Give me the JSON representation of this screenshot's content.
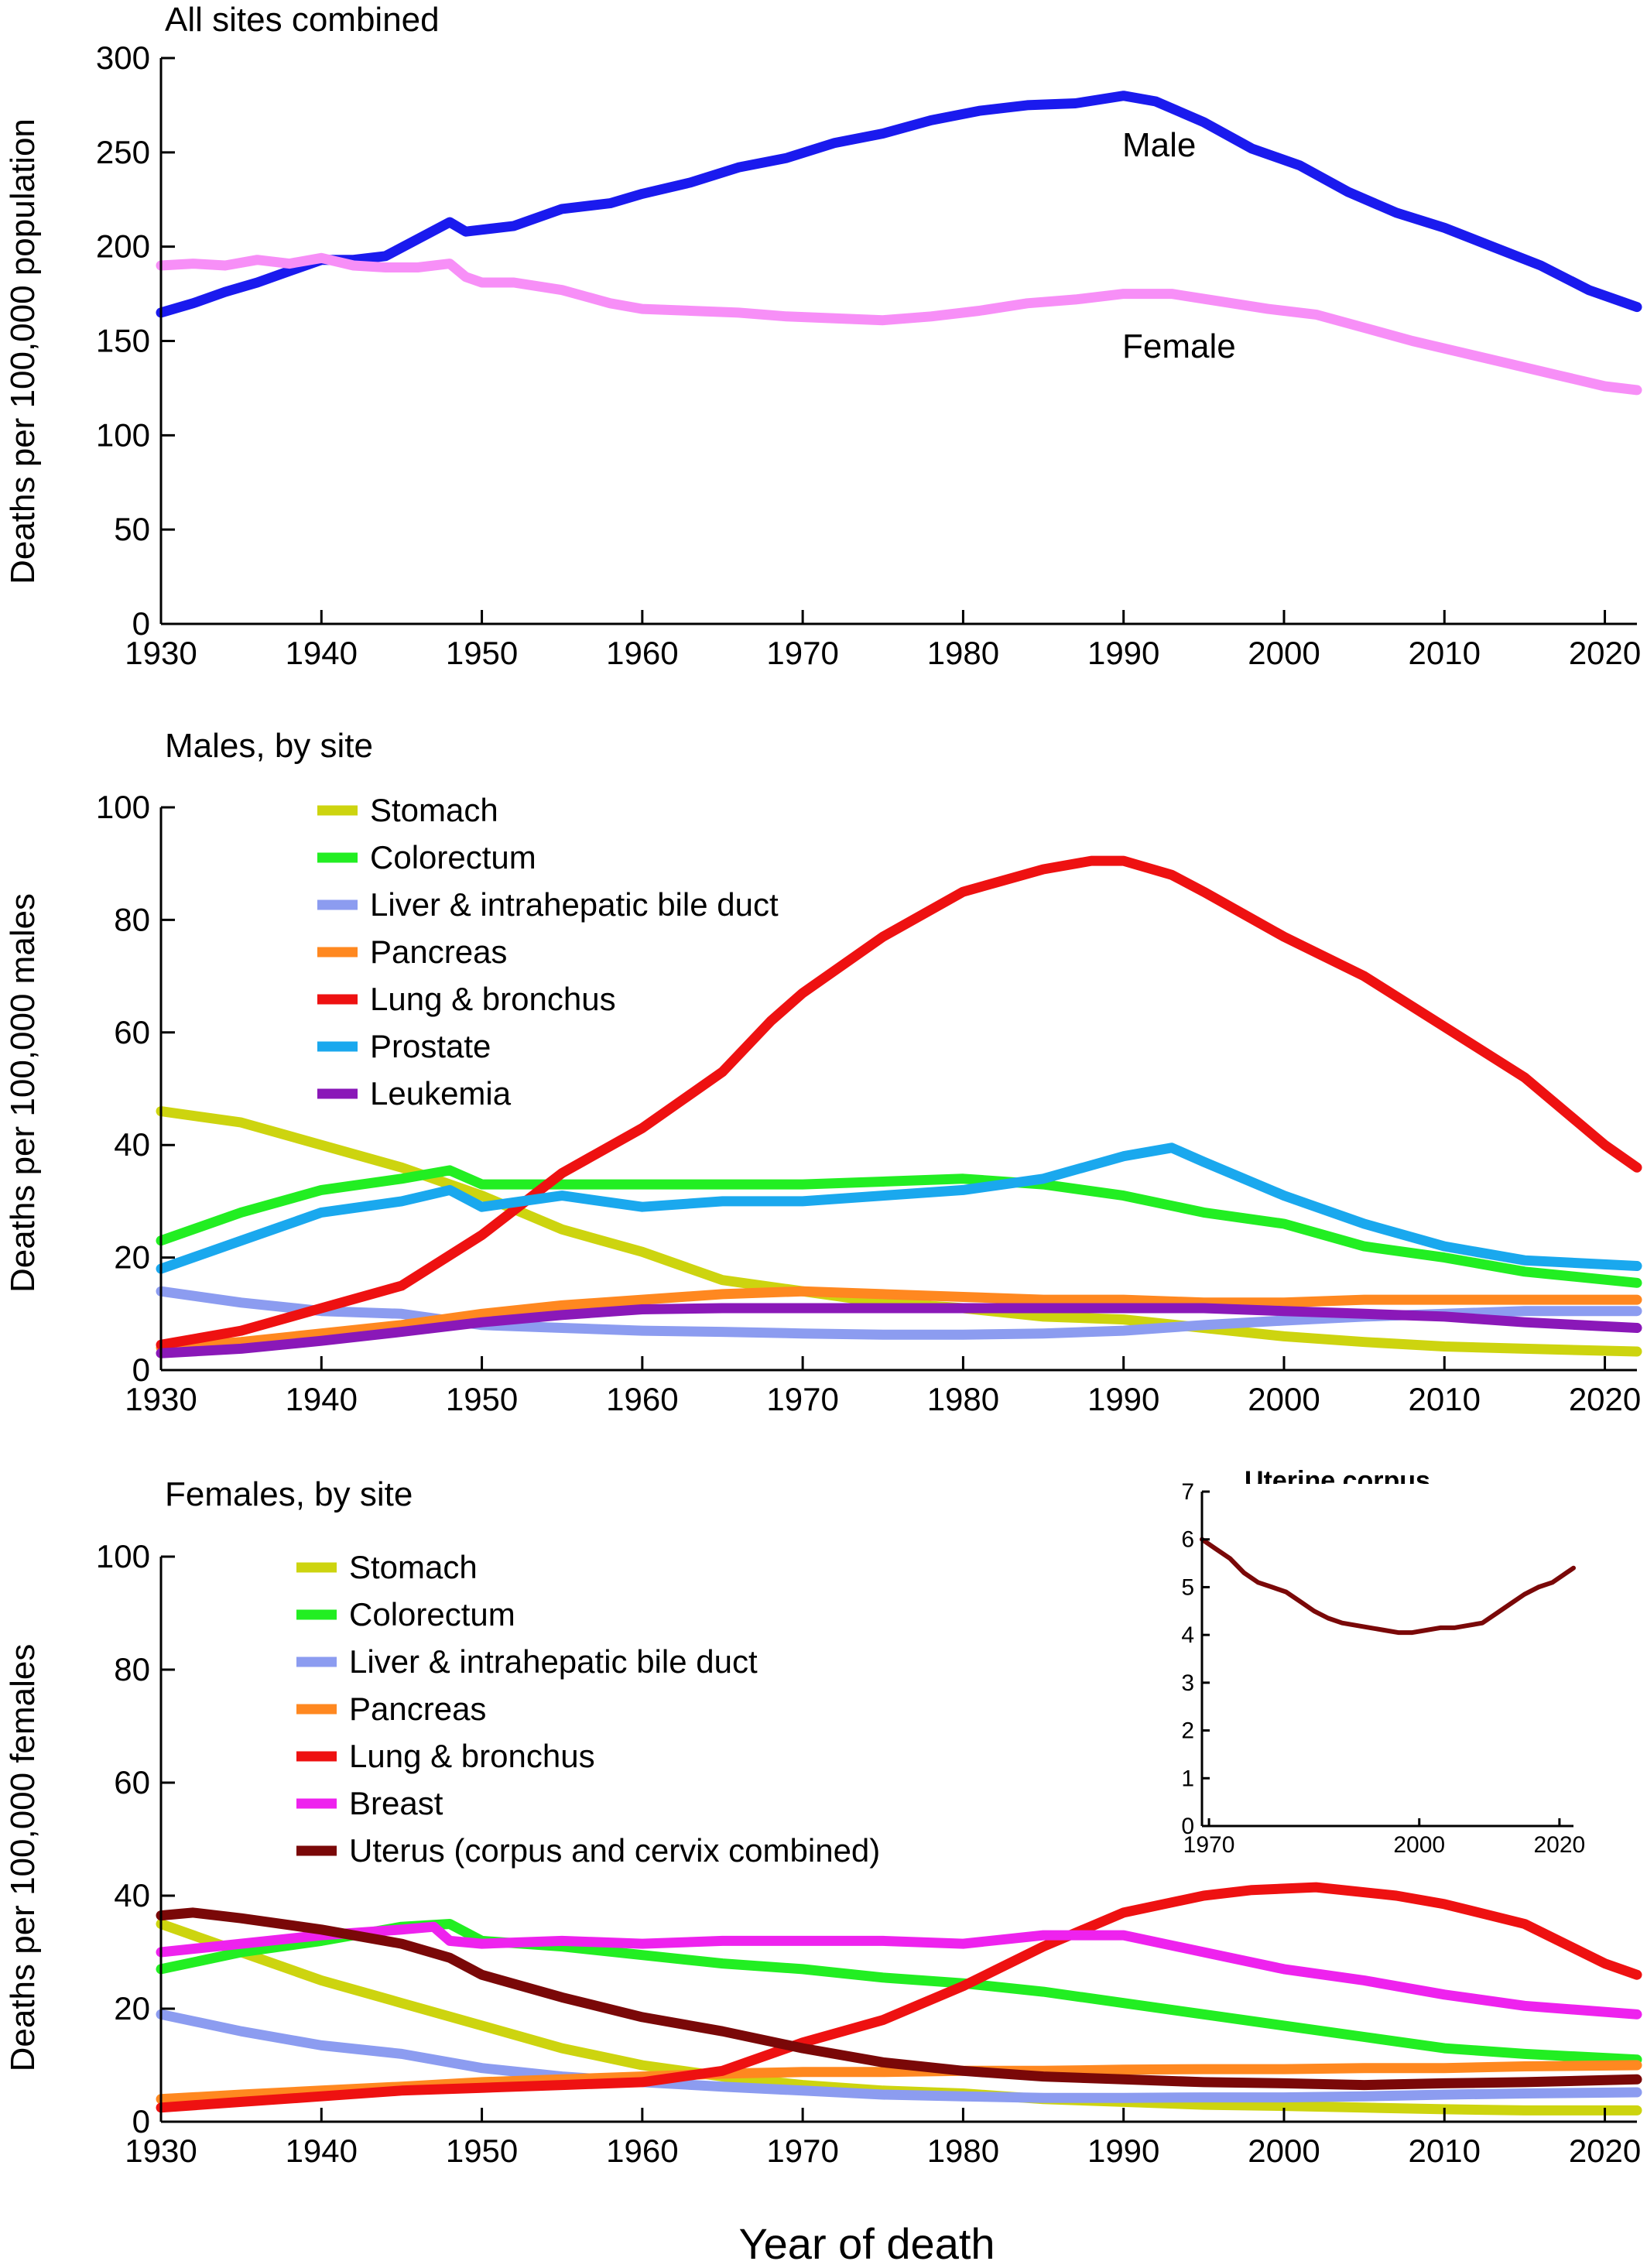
{
  "x_axis_title": "Year of death",
  "chart_data": [
    {
      "type": "line",
      "title": "All sites combined",
      "ylabel": "Deaths per 100,000 population",
      "xlabel": "",
      "xlim": [
        1930,
        2022
      ],
      "ylim": [
        0,
        300
      ],
      "xticks": [
        1930,
        1940,
        1950,
        1960,
        1970,
        1980,
        1990,
        2000,
        2010,
        2020
      ],
      "yticks": [
        0,
        50,
        100,
        150,
        200,
        250,
        300
      ],
      "series": [
        {
          "name": "Male",
          "color": "#1a1aee",
          "x": [
            1930,
            1932,
            1934,
            1936,
            1938,
            1940,
            1942,
            1944,
            1946,
            1948,
            1949,
            1952,
            1955,
            1958,
            1960,
            1963,
            1966,
            1969,
            1972,
            1975,
            1978,
            1981,
            1984,
            1987,
            1990,
            1992,
            1995,
            1998,
            2001,
            2004,
            2007,
            2010,
            2013,
            2016,
            2019,
            2022
          ],
          "y": [
            165,
            170,
            176,
            181,
            187,
            193,
            193,
            195,
            204,
            213,
            208,
            211,
            220,
            223,
            228,
            234,
            242,
            247,
            255,
            260,
            267,
            272,
            275,
            276,
            280,
            277,
            266,
            252,
            243,
            229,
            218,
            210,
            200,
            190,
            177,
            168
          ]
        },
        {
          "name": "Female",
          "color": "#f78ff7",
          "x": [
            1930,
            1932,
            1934,
            1936,
            1938,
            1940,
            1942,
            1944,
            1946,
            1948,
            1949,
            1950,
            1952,
            1955,
            1958,
            1960,
            1963,
            1966,
            1969,
            1972,
            1975,
            1978,
            1981,
            1984,
            1987,
            1990,
            1993,
            1996,
            1999,
            2002,
            2005,
            2008,
            2011,
            2014,
            2017,
            2020,
            2022
          ],
          "y": [
            190,
            191,
            190,
            193,
            191,
            194,
            190,
            189,
            189,
            191,
            184,
            181,
            181,
            177,
            170,
            167,
            166,
            165,
            163,
            162,
            161,
            163,
            166,
            170,
            172,
            175,
            175,
            171,
            167,
            164,
            157,
            150,
            144,
            138,
            132,
            126,
            124
          ]
        }
      ]
    },
    {
      "type": "line",
      "title": "Males, by site",
      "ylabel": "Deaths per 100,000 males",
      "xlabel": "",
      "xlim": [
        1930,
        2022
      ],
      "ylim": [
        0,
        100
      ],
      "xticks": [
        1930,
        1940,
        1950,
        1960,
        1970,
        1980,
        1990,
        2000,
        2010,
        2020
      ],
      "yticks": [
        0,
        20,
        40,
        60,
        80,
        100
      ],
      "legend": "top-left",
      "series": [
        {
          "name": "Stomach",
          "color": "#cdd40f",
          "x": [
            1930,
            1935,
            1940,
            1945,
            1950,
            1955,
            1960,
            1965,
            1970,
            1975,
            1980,
            1985,
            1990,
            1995,
            2000,
            2005,
            2010,
            2015,
            2022
          ],
          "y": [
            46,
            44,
            40,
            36,
            31,
            25,
            21,
            16,
            14,
            12,
            11,
            9.5,
            9,
            7.5,
            6,
            5,
            4.2,
            3.8,
            3.3
          ]
        },
        {
          "name": "Colorectum",
          "color": "#22ee22",
          "x": [
            1930,
            1935,
            1940,
            1945,
            1948,
            1950,
            1955,
            1960,
            1965,
            1970,
            1975,
            1980,
            1985,
            1990,
            1995,
            2000,
            2005,
            2010,
            2015,
            2022
          ],
          "y": [
            23,
            28,
            32,
            34,
            35.5,
            33,
            33,
            33,
            33,
            33,
            33.5,
            34,
            33,
            31,
            28,
            26,
            22,
            20,
            17.5,
            15.5
          ]
        },
        {
          "name": "Liver & intrahepatic bile duct",
          "color": "#8c9cf0",
          "x": [
            1930,
            1935,
            1940,
            1945,
            1950,
            1955,
            1960,
            1965,
            1970,
            1975,
            1980,
            1985,
            1990,
            1995,
            2000,
            2005,
            2010,
            2015,
            2022
          ],
          "y": [
            14,
            12,
            10.5,
            10,
            8,
            7.5,
            7,
            6.8,
            6.5,
            6.3,
            6.3,
            6.5,
            7,
            8,
            8.8,
            9.5,
            10,
            10.5,
            10.5
          ]
        },
        {
          "name": "Pancreas",
          "color": "#ff8820",
          "x": [
            1930,
            1935,
            1940,
            1945,
            1950,
            1955,
            1960,
            1965,
            1970,
            1975,
            1980,
            1985,
            1990,
            1995,
            2000,
            2005,
            2010,
            2015,
            2022
          ],
          "y": [
            4,
            5,
            6.5,
            8,
            10,
            11.5,
            12.5,
            13.5,
            14,
            13.5,
            13,
            12.5,
            12.5,
            12,
            12,
            12.5,
            12.5,
            12.5,
            12.5
          ]
        },
        {
          "name": "Lung & bronchus",
          "color": "#ee1111",
          "x": [
            1930,
            1935,
            1940,
            1945,
            1950,
            1955,
            1960,
            1965,
            1968,
            1970,
            1975,
            1980,
            1985,
            1988,
            1990,
            1993,
            1995,
            2000,
            2005,
            2010,
            2015,
            2020,
            2022
          ],
          "y": [
            4.5,
            7,
            11,
            15,
            24,
            35,
            43,
            53,
            62,
            67,
            77,
            85,
            89,
            90.5,
            90.5,
            88,
            85,
            77,
            70,
            61,
            52,
            40,
            36
          ]
        },
        {
          "name": "Prostate",
          "color": "#1aa8ee",
          "x": [
            1930,
            1935,
            1940,
            1945,
            1948,
            1950,
            1955,
            1960,
            1965,
            1970,
            1975,
            1980,
            1985,
            1990,
            1993,
            1995,
            2000,
            2005,
            2010,
            2015,
            2022
          ],
          "y": [
            18,
            23,
            28,
            30,
            32,
            29,
            31,
            29,
            30,
            30,
            31,
            32,
            34,
            38,
            39.5,
            37,
            31,
            26,
            22,
            19.5,
            18.5
          ]
        },
        {
          "name": "Leukemia",
          "color": "#8a18b8",
          "x": [
            1930,
            1935,
            1940,
            1945,
            1950,
            1955,
            1960,
            1965,
            1970,
            1975,
            1980,
            1985,
            1990,
            1995,
            2000,
            2005,
            2010,
            2015,
            2022
          ],
          "y": [
            3,
            3.8,
            5.2,
            6.8,
            8.5,
            9.8,
            10.8,
            11,
            11,
            11,
            11,
            11,
            11,
            11,
            10.5,
            10,
            9.5,
            8.5,
            7.5
          ]
        }
      ]
    },
    {
      "type": "line",
      "title": "Females, by site",
      "ylabel": "Deaths per 100,000 females",
      "xlabel": "",
      "xlim": [
        1930,
        2022
      ],
      "ylim": [
        0,
        100
      ],
      "xticks": [
        1930,
        1940,
        1950,
        1960,
        1970,
        1980,
        1990,
        2000,
        2010,
        2020
      ],
      "yticks": [
        0,
        20,
        40,
        60,
        80,
        100
      ],
      "legend": "top-left",
      "series": [
        {
          "name": "Stomach",
          "color": "#cdd40f",
          "x": [
            1930,
            1935,
            1940,
            1945,
            1950,
            1955,
            1960,
            1965,
            1970,
            1975,
            1980,
            1985,
            1990,
            1995,
            2000,
            2005,
            2010,
            2015,
            2022
          ],
          "y": [
            35,
            30,
            25,
            21,
            17,
            13,
            10,
            8,
            6.5,
            5.5,
            5,
            4,
            3.5,
            3,
            2.8,
            2.5,
            2.2,
            2,
            2
          ]
        },
        {
          "name": "Colorectum",
          "color": "#22ee22",
          "x": [
            1930,
            1935,
            1940,
            1945,
            1948,
            1950,
            1955,
            1960,
            1965,
            1970,
            1975,
            1980,
            1985,
            1990,
            1995,
            2000,
            2005,
            2010,
            2015,
            2022
          ],
          "y": [
            27,
            30,
            32,
            34.5,
            35,
            32,
            31,
            29.5,
            28,
            27,
            25.5,
            24.5,
            23,
            21,
            19,
            17,
            15,
            13,
            12,
            11
          ]
        },
        {
          "name": "Liver & intrahepatic bile duct",
          "color": "#8c9cf0",
          "x": [
            1930,
            1935,
            1940,
            1945,
            1950,
            1955,
            1960,
            1965,
            1970,
            1975,
            1980,
            1985,
            1990,
            1995,
            2000,
            2005,
            2010,
            2015,
            2022
          ],
          "y": [
            19,
            16,
            13.5,
            12,
            9.5,
            8,
            7,
            6.2,
            5.5,
            4.8,
            4.5,
            4.2,
            4.2,
            4.3,
            4.3,
            4.5,
            4.8,
            5,
            5.2
          ]
        },
        {
          "name": "Pancreas",
          "color": "#ff8820",
          "x": [
            1930,
            1935,
            1940,
            1945,
            1950,
            1955,
            1960,
            1965,
            1970,
            1975,
            1980,
            1985,
            1990,
            1995,
            2000,
            2005,
            2010,
            2015,
            2022
          ],
          "y": [
            4,
            4.8,
            5.5,
            6.2,
            7,
            7.5,
            8,
            8.5,
            8.8,
            8.8,
            9,
            9,
            9.2,
            9.3,
            9.3,
            9.5,
            9.5,
            9.8,
            10
          ]
        },
        {
          "name": "Lung & bronchus",
          "color": "#ee1111",
          "x": [
            1930,
            1935,
            1940,
            1945,
            1950,
            1955,
            1960,
            1965,
            1970,
            1975,
            1980,
            1985,
            1990,
            1995,
            1998,
            2002,
            2007,
            2010,
            2015,
            2020,
            2022
          ],
          "y": [
            2.5,
            3.5,
            4.5,
            5.5,
            6,
            6.5,
            7,
            9,
            14,
            18,
            24,
            31,
            37,
            40,
            41,
            41.5,
            40,
            38.5,
            35,
            28,
            26
          ]
        },
        {
          "name": "Breast",
          "color": "#ee22ee",
          "x": [
            1930,
            1935,
            1940,
            1945,
            1947,
            1948,
            1950,
            1955,
            1960,
            1965,
            1970,
            1975,
            1980,
            1985,
            1990,
            1995,
            2000,
            2005,
            2010,
            2015,
            2022
          ],
          "y": [
            30,
            31.5,
            33,
            34,
            34.5,
            32,
            31.5,
            32,
            31.5,
            32,
            32,
            32,
            31.5,
            33,
            33,
            30,
            27,
            25,
            22.5,
            20.5,
            19
          ]
        },
        {
          "name": "Uterus (corpus and cervix combined)",
          "color": "#7a0808",
          "x": [
            1930,
            1932,
            1935,
            1940,
            1945,
            1948,
            1950,
            1955,
            1960,
            1965,
            1970,
            1975,
            1980,
            1985,
            1990,
            1995,
            2000,
            2005,
            2010,
            2015,
            2022
          ],
          "y": [
            36.5,
            37,
            36,
            34,
            31.5,
            29,
            26,
            22,
            18.5,
            16,
            13,
            10.5,
            9,
            8,
            7.5,
            7,
            6.8,
            6.5,
            6.8,
            7,
            7.5
          ]
        }
      ]
    },
    {
      "type": "line",
      "title": "Uterine corpus",
      "xlim": [
        1969,
        2022
      ],
      "ylim": [
        0,
        7
      ],
      "xticks": [
        1970,
        2000,
        2020
      ],
      "yticks": [
        0,
        1,
        2,
        3,
        4,
        5,
        6,
        7
      ],
      "series": [
        {
          "color": "#7a0808",
          "x": [
            1969,
            1971,
            1973,
            1975,
            1977,
            1979,
            1981,
            1983,
            1985,
            1987,
            1989,
            1991,
            1993,
            1995,
            1997,
            1999,
            2001,
            2003,
            2005,
            2007,
            2009,
            2011,
            2013,
            2015,
            2017,
            2019,
            2021,
            2022
          ],
          "y": [
            6,
            5.8,
            5.6,
            5.3,
            5.1,
            5.0,
            4.9,
            4.7,
            4.5,
            4.35,
            4.25,
            4.2,
            4.15,
            4.1,
            4.05,
            4.05,
            4.1,
            4.15,
            4.15,
            4.2,
            4.25,
            4.45,
            4.65,
            4.85,
            5.0,
            5.1,
            5.3,
            5.4
          ]
        }
      ]
    }
  ],
  "annotations": {
    "male_label": "Male",
    "female_label": "Female"
  }
}
